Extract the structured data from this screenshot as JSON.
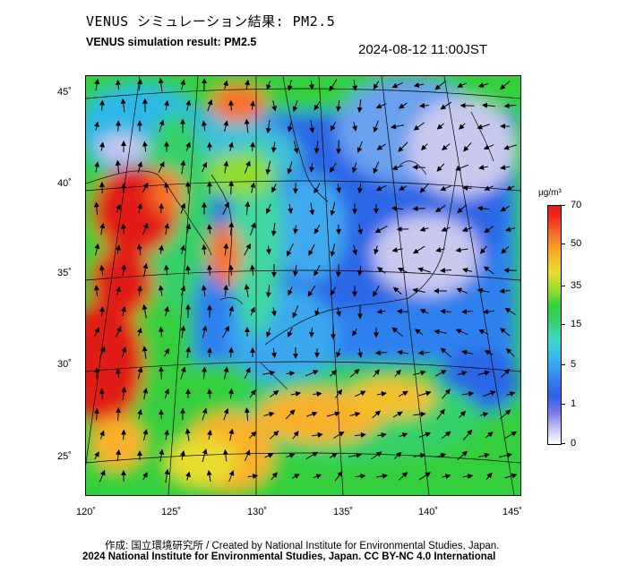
{
  "header": {
    "title_jp": "VENUS シミュレーション結果: PM2.5",
    "title_en": "VENUS simulation result: PM2.5",
    "timestamp": "2024-08-12 11:00JST"
  },
  "map": {
    "latitude_labels": [
      "45˚",
      "40˚",
      "35˚",
      "30˚",
      "25˚"
    ],
    "longitude_labels": [
      "120˚",
      "125˚",
      "130˚",
      "135˚",
      "140˚",
      "145˚"
    ]
  },
  "colorbar": {
    "unit": "µg/m³",
    "ticks": [
      "70",
      "50",
      "35",
      "15",
      "5",
      "1",
      "0"
    ],
    "colors": {
      "low": "#ffffff",
      "blue": "#2f5fe6",
      "cyan": "#35b7f0",
      "green": "#2fd13a",
      "yellow": "#e9dd2d",
      "orange": "#f8b12a",
      "red": "#e11a14"
    }
  },
  "footer": {
    "credit_line": "作成: 国立環境研究所 / Created by National Institute for Environmental Studies, Japan.",
    "license_line": "2024 National Institute for Environmental Studies, Japan. CC BY-NC 4.0 International"
  }
}
